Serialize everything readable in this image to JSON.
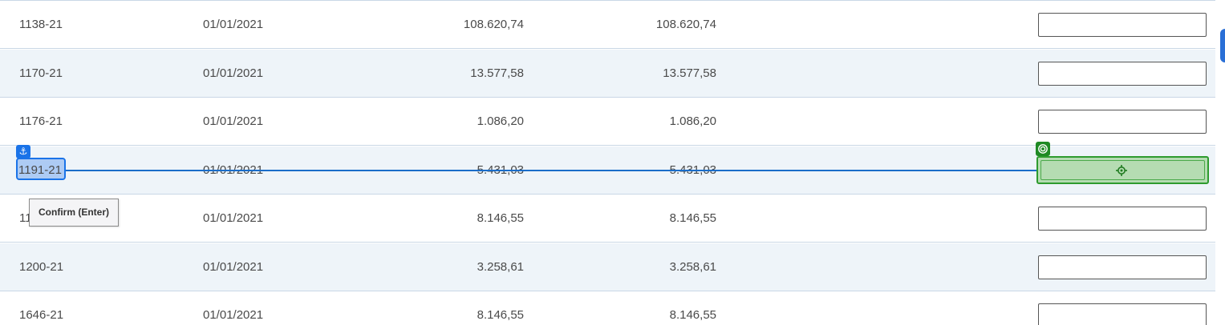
{
  "table": {
    "rows": [
      {
        "id": "1138-21",
        "date": "01/01/2021",
        "amount": "108.620,74",
        "balance": "108.620,74",
        "input_value": ""
      },
      {
        "id": "1170-21",
        "date": "01/01/2021",
        "amount": "13.577,58",
        "balance": "13.577,58",
        "input_value": ""
      },
      {
        "id": "1176-21",
        "date": "01/01/2021",
        "amount": "1.086,20",
        "balance": "1.086,20",
        "input_value": ""
      },
      {
        "id": "1191-21",
        "date": "01/01/2021",
        "amount": "5.431,03",
        "balance": "5.431,03",
        "input_value": ""
      },
      {
        "id": "11",
        "date": "01/01/2021",
        "amount": "8.146,55",
        "balance": "8.146,55",
        "input_value": ""
      },
      {
        "id": "1200-21",
        "date": "01/01/2021",
        "amount": "3.258,61",
        "balance": "3.258,61",
        "input_value": ""
      },
      {
        "id": "1646-21",
        "date": "01/01/2021",
        "amount": "8.146,55",
        "balance": "8.146,55",
        "input_value": ""
      }
    ]
  },
  "overlay": {
    "tooltip": "Confirm (Enter)",
    "anchor_icon": "anchor-icon",
    "target_icon": "target-icon",
    "crosshair_icon": "crosshair-icon"
  },
  "colors": {
    "drag_accent": "#1a73e8",
    "target_accent": "#2e9b2e",
    "row_alt_bg": "#eef4f9"
  }
}
